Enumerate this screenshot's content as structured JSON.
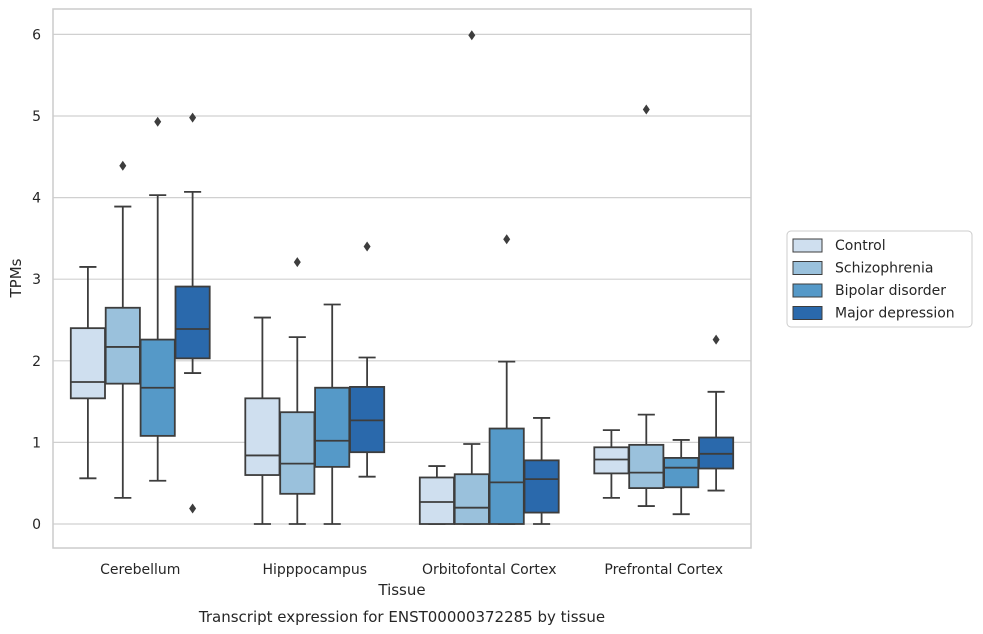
{
  "chart_data": {
    "type": "boxplot",
    "caption": "Transcript expression for ENST00000372285 by tissue",
    "xlabel": "Tissue",
    "ylabel": "TPMs",
    "ylim": [
      -0.3,
      6.3
    ],
    "yticks": [
      0,
      1,
      2,
      3,
      4,
      5,
      6
    ],
    "grid": true,
    "legend_position": "right",
    "categories": [
      "Cerebellum",
      "Hipppocampus",
      "Orbitofontal Cortex",
      "Prefrontal Cortex"
    ],
    "series": [
      {
        "name": "Control",
        "color": "#cfdfef",
        "boxes": [
          {
            "whislo": 0.56,
            "q1": 1.54,
            "med": 1.74,
            "q3": 2.4,
            "whishi": 3.15,
            "fliers": []
          },
          {
            "whislo": 0.0,
            "q1": 0.6,
            "med": 0.84,
            "q3": 1.54,
            "whishi": 2.53,
            "fliers": []
          },
          {
            "whislo": 0.0,
            "q1": 0.0,
            "med": 0.27,
            "q3": 0.57,
            "whishi": 0.71,
            "fliers": []
          },
          {
            "whislo": 0.32,
            "q1": 0.62,
            "med": 0.79,
            "q3": 0.94,
            "whishi": 1.15,
            "fliers": []
          }
        ]
      },
      {
        "name": "Schizophrenia",
        "color": "#9ac1dc",
        "boxes": [
          {
            "whislo": 0.32,
            "q1": 1.72,
            "med": 2.17,
            "q3": 2.65,
            "whishi": 3.89,
            "fliers": [
              4.39
            ]
          },
          {
            "whislo": 0.0,
            "q1": 0.37,
            "med": 0.74,
            "q3": 1.37,
            "whishi": 2.29,
            "fliers": [
              3.21
            ]
          },
          {
            "whislo": 0.0,
            "q1": 0.0,
            "med": 0.2,
            "q3": 0.61,
            "whishi": 0.98,
            "fliers": [
              5.99
            ]
          },
          {
            "whislo": 0.22,
            "q1": 0.44,
            "med": 0.63,
            "q3": 0.97,
            "whishi": 1.34,
            "fliers": [
              5.08
            ]
          }
        ]
      },
      {
        "name": "Bipolar disorder",
        "color": "#5599c8",
        "boxes": [
          {
            "whislo": 0.53,
            "q1": 1.08,
            "med": 1.67,
            "q3": 2.26,
            "whishi": 4.03,
            "fliers": [
              4.93
            ]
          },
          {
            "whislo": 0.0,
            "q1": 0.7,
            "med": 1.02,
            "q3": 1.67,
            "whishi": 2.69,
            "fliers": []
          },
          {
            "whislo": 0.0,
            "q1": 0.0,
            "med": 0.51,
            "q3": 1.17,
            "whishi": 1.99,
            "fliers": [
              3.49
            ]
          },
          {
            "whislo": 0.12,
            "q1": 0.45,
            "med": 0.69,
            "q3": 0.81,
            "whishi": 1.03,
            "fliers": []
          }
        ]
      },
      {
        "name": "Major depression",
        "color": "#2a69ac",
        "boxes": [
          {
            "whislo": 1.85,
            "q1": 2.03,
            "med": 2.39,
            "q3": 2.91,
            "whishi": 4.07,
            "fliers": [
              4.98,
              0.19
            ]
          },
          {
            "whislo": 0.58,
            "q1": 0.88,
            "med": 1.27,
            "q3": 1.68,
            "whishi": 2.04,
            "fliers": [
              3.4
            ]
          },
          {
            "whislo": 0.0,
            "q1": 0.14,
            "med": 0.55,
            "q3": 0.78,
            "whishi": 1.3,
            "fliers": []
          },
          {
            "whislo": 0.41,
            "q1": 0.68,
            "med": 0.86,
            "q3": 1.06,
            "whishi": 1.62,
            "fliers": [
              2.26
            ]
          }
        ]
      }
    ]
  },
  "colors": {
    "grid": "#d0d0d0",
    "frame": "#cccccc",
    "box_edge": "#3d3d3d",
    "legend_border": "#cccccc"
  }
}
